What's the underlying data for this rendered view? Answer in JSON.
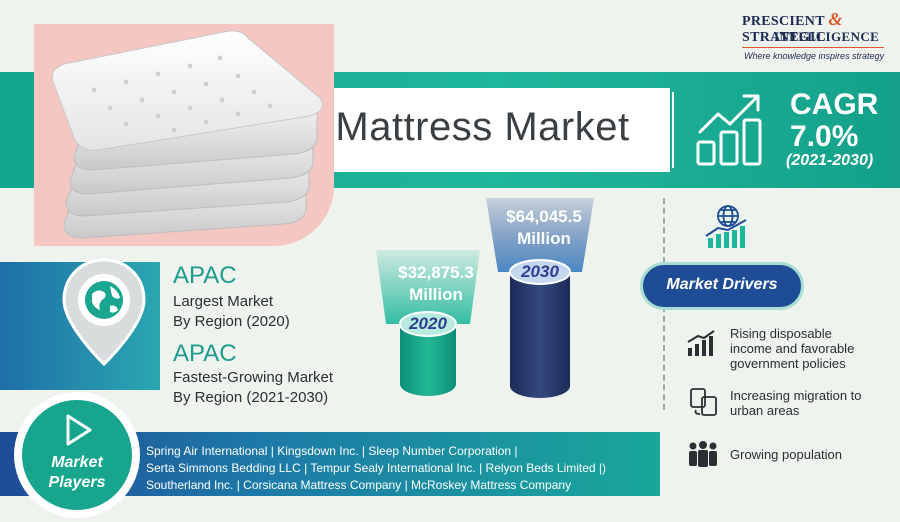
{
  "logo": {
    "line1_a": "PRESCIENT",
    "line1_amp": "&",
    "line1_b": "STRATEGIC",
    "line2": "INTELLIGENCE",
    "tagline": "Where knowledge inspires strategy"
  },
  "title": "Mattress Market",
  "cagr": {
    "label": "CAGR",
    "value": "7.0%",
    "period": "(2021-2030)"
  },
  "regions": {
    "largest": {
      "name": "APAC",
      "desc_line1": "Largest Market",
      "desc_line2": "By Region (2020)"
    },
    "fastest": {
      "name": "APAC",
      "desc_line1": "Fastest-Growing Market",
      "desc_line2": "By Region (2021-2030)"
    }
  },
  "market_size": [
    {
      "year": "2020",
      "amount": "$32,875.3",
      "unit": "Million"
    },
    {
      "year": "2030",
      "amount": "$64,045.5",
      "unit": "Million"
    }
  ],
  "drivers": {
    "label": "Market Drivers",
    "items": [
      {
        "icon": "rising-bars-icon",
        "line1": "Rising disposable",
        "line2": "income and favorable",
        "line3": "government policies"
      },
      {
        "icon": "migration-docs-icon",
        "line1": "Increasing migration to",
        "line2": "urban areas",
        "line3": ""
      },
      {
        "icon": "population-icon",
        "line1": "Growing population",
        "line2": "",
        "line3": ""
      }
    ]
  },
  "players": {
    "label_line1": "Market",
    "label_line2": "Players",
    "line1": "Spring Air International | Kingsdown Inc. | Sleep Number Corporation |",
    "line2": "Serta Simmons Bedding LLC | Tempur Sealy International Inc. | Relyon Beds Limited |)",
    "line3": "Southerland Inc. | Corsicana Mattress Company | McRoskey Mattress Company"
  },
  "colors": {
    "teal": "#1fb79b",
    "navy": "#1e4d96",
    "logo_orange": "#e0582a"
  }
}
